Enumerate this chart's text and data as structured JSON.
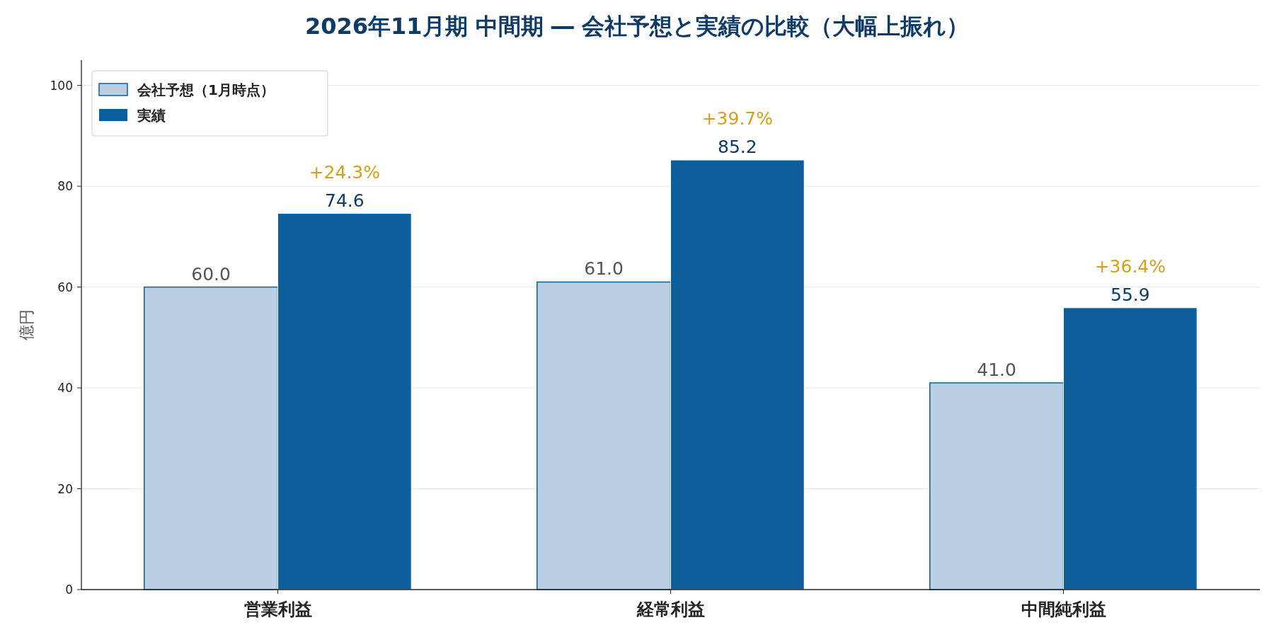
{
  "chart_data": {
    "type": "bar",
    "title": "2026年11月期 中間期 ― 会社予想と実績の比較（大幅上振れ）",
    "ylabel": "億円",
    "categories": [
      "営業利益",
      "経常利益",
      "中間純利益"
    ],
    "series": [
      {
        "name": "会社予想（1月時点）",
        "color": "#b9cfe3",
        "values": [
          60.0,
          61.0,
          41.0
        ],
        "value_labels": [
          "60.0",
          "61.0",
          "41.0"
        ]
      },
      {
        "name": "実績",
        "color": "#0f5e9c",
        "values": [
          74.6,
          85.2,
          55.9
        ],
        "value_labels": [
          "74.6",
          "85.2",
          "55.9"
        ]
      }
    ],
    "annotations": [
      {
        "text": "+24.3%",
        "x": "営業利益",
        "y": 74.6
      },
      {
        "text": "+39.7%",
        "x": "経常利益",
        "y": 85.2
      },
      {
        "text": "+36.4%",
        "x": "中間純利益",
        "y": 55.9
      }
    ],
    "ylim": [
      0,
      105
    ],
    "yticks": [
      0,
      20,
      40,
      60,
      80,
      100
    ],
    "grid": "y",
    "legend": "top left"
  }
}
